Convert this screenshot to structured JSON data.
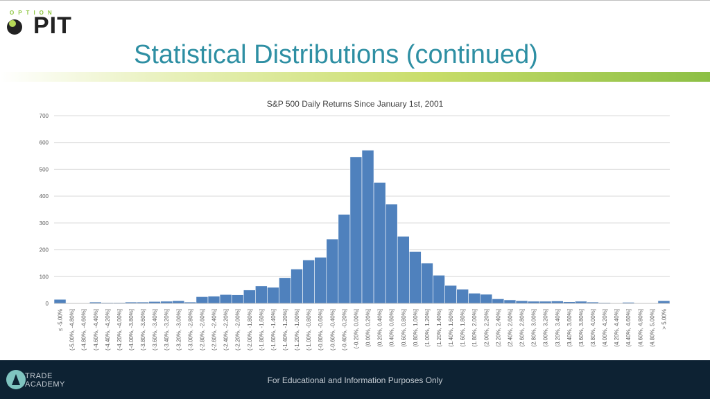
{
  "slide": {
    "title": "Statistical Distributions (continued)",
    "footer": "For Educational and Information Purposes Only"
  },
  "branding": {
    "logo_top": "OPTION",
    "logo_main": "PIT",
    "academy_line1": "TRADE",
    "academy_line2": "ACADEMY"
  },
  "colors": {
    "bar": "#4f81bd",
    "title": "#2e8fa3",
    "footer_bg": "#0d2233"
  },
  "chart_data": {
    "type": "bar",
    "title": "S&P 500 Daily Returns Since January 1st, 2001",
    "xlabel": "",
    "ylabel": "",
    "ylim": [
      0,
      700
    ],
    "yticks": [
      0,
      100,
      200,
      300,
      400,
      500,
      600,
      700
    ],
    "grid": true,
    "categories": [
      "≤ -5.00%",
      "(-5.00%, -4.80%]",
      "(-4.80%, -4.60%]",
      "(-4.60%, -4.40%]",
      "(-4.40%, -4.20%]",
      "(-4.20%, -4.00%]",
      "(-4.00%, -3.80%]",
      "(-3.80%, -3.60%]",
      "(-3.60%, -3.40%]",
      "(-3.40%, -3.20%]",
      "(-3.20%, -3.00%]",
      "(-3.00%, -2.80%]",
      "(-2.80%, -2.60%]",
      "(-2.60%, -2.40%]",
      "(-2.40%, -2.20%]",
      "(-2.20%, -2.00%]",
      "(-2.00%, -1.80%]",
      "(-1.80%, -1.60%]",
      "(-1.60%, -1.40%]",
      "(-1.40%, -1.20%]",
      "(-1.20%, -1.00%]",
      "(-1.00%, -0.80%]",
      "(-0.80%, -0.60%]",
      "(-0.60%, -0.40%]",
      "(-0.40%, -0.20%]",
      "(-0.20%, 0.00%]",
      "(0.00%, 0.20%]",
      "(0.20%, 0.40%]",
      "(0.40%, 0.60%]",
      "(0.60%, 0.80%]",
      "(0.80%, 1.00%]",
      "(1.00%, 1.20%]",
      "(1.20%, 1.40%]",
      "(1.40%, 1.60%]",
      "(1.60%, 1.80%]",
      "(1.80%, 2.00%]",
      "(2.00%, 2.20%]",
      "(2.20%, 2.40%]",
      "(2.40%, 2.60%]",
      "(2.60%, 2.80%]",
      "(2.80%, 3.00%]",
      "(3.00%, 3.20%]",
      "(3.20%, 3.40%]",
      "(3.40%, 3.60%]",
      "(3.60%, 3.80%]",
      "(3.80%, 4.00%]",
      "(4.00%, 4.20%]",
      "(4.20%, 4.40%]",
      "(4.40%, 4.60%]",
      "(4.60%, 4.80%]",
      "(4.80%, 5.00%]",
      "> 5.00%"
    ],
    "values": [
      15,
      1,
      1,
      5,
      3,
      3,
      5,
      5,
      7,
      8,
      10,
      5,
      25,
      27,
      33,
      32,
      50,
      65,
      60,
      96,
      128,
      162,
      172,
      240,
      332,
      546,
      571,
      451,
      370,
      250,
      193,
      150,
      105,
      67,
      53,
      38,
      34,
      17,
      13,
      10,
      8,
      8,
      9,
      6,
      8,
      5,
      3,
      2,
      4,
      2,
      1,
      10
    ]
  }
}
